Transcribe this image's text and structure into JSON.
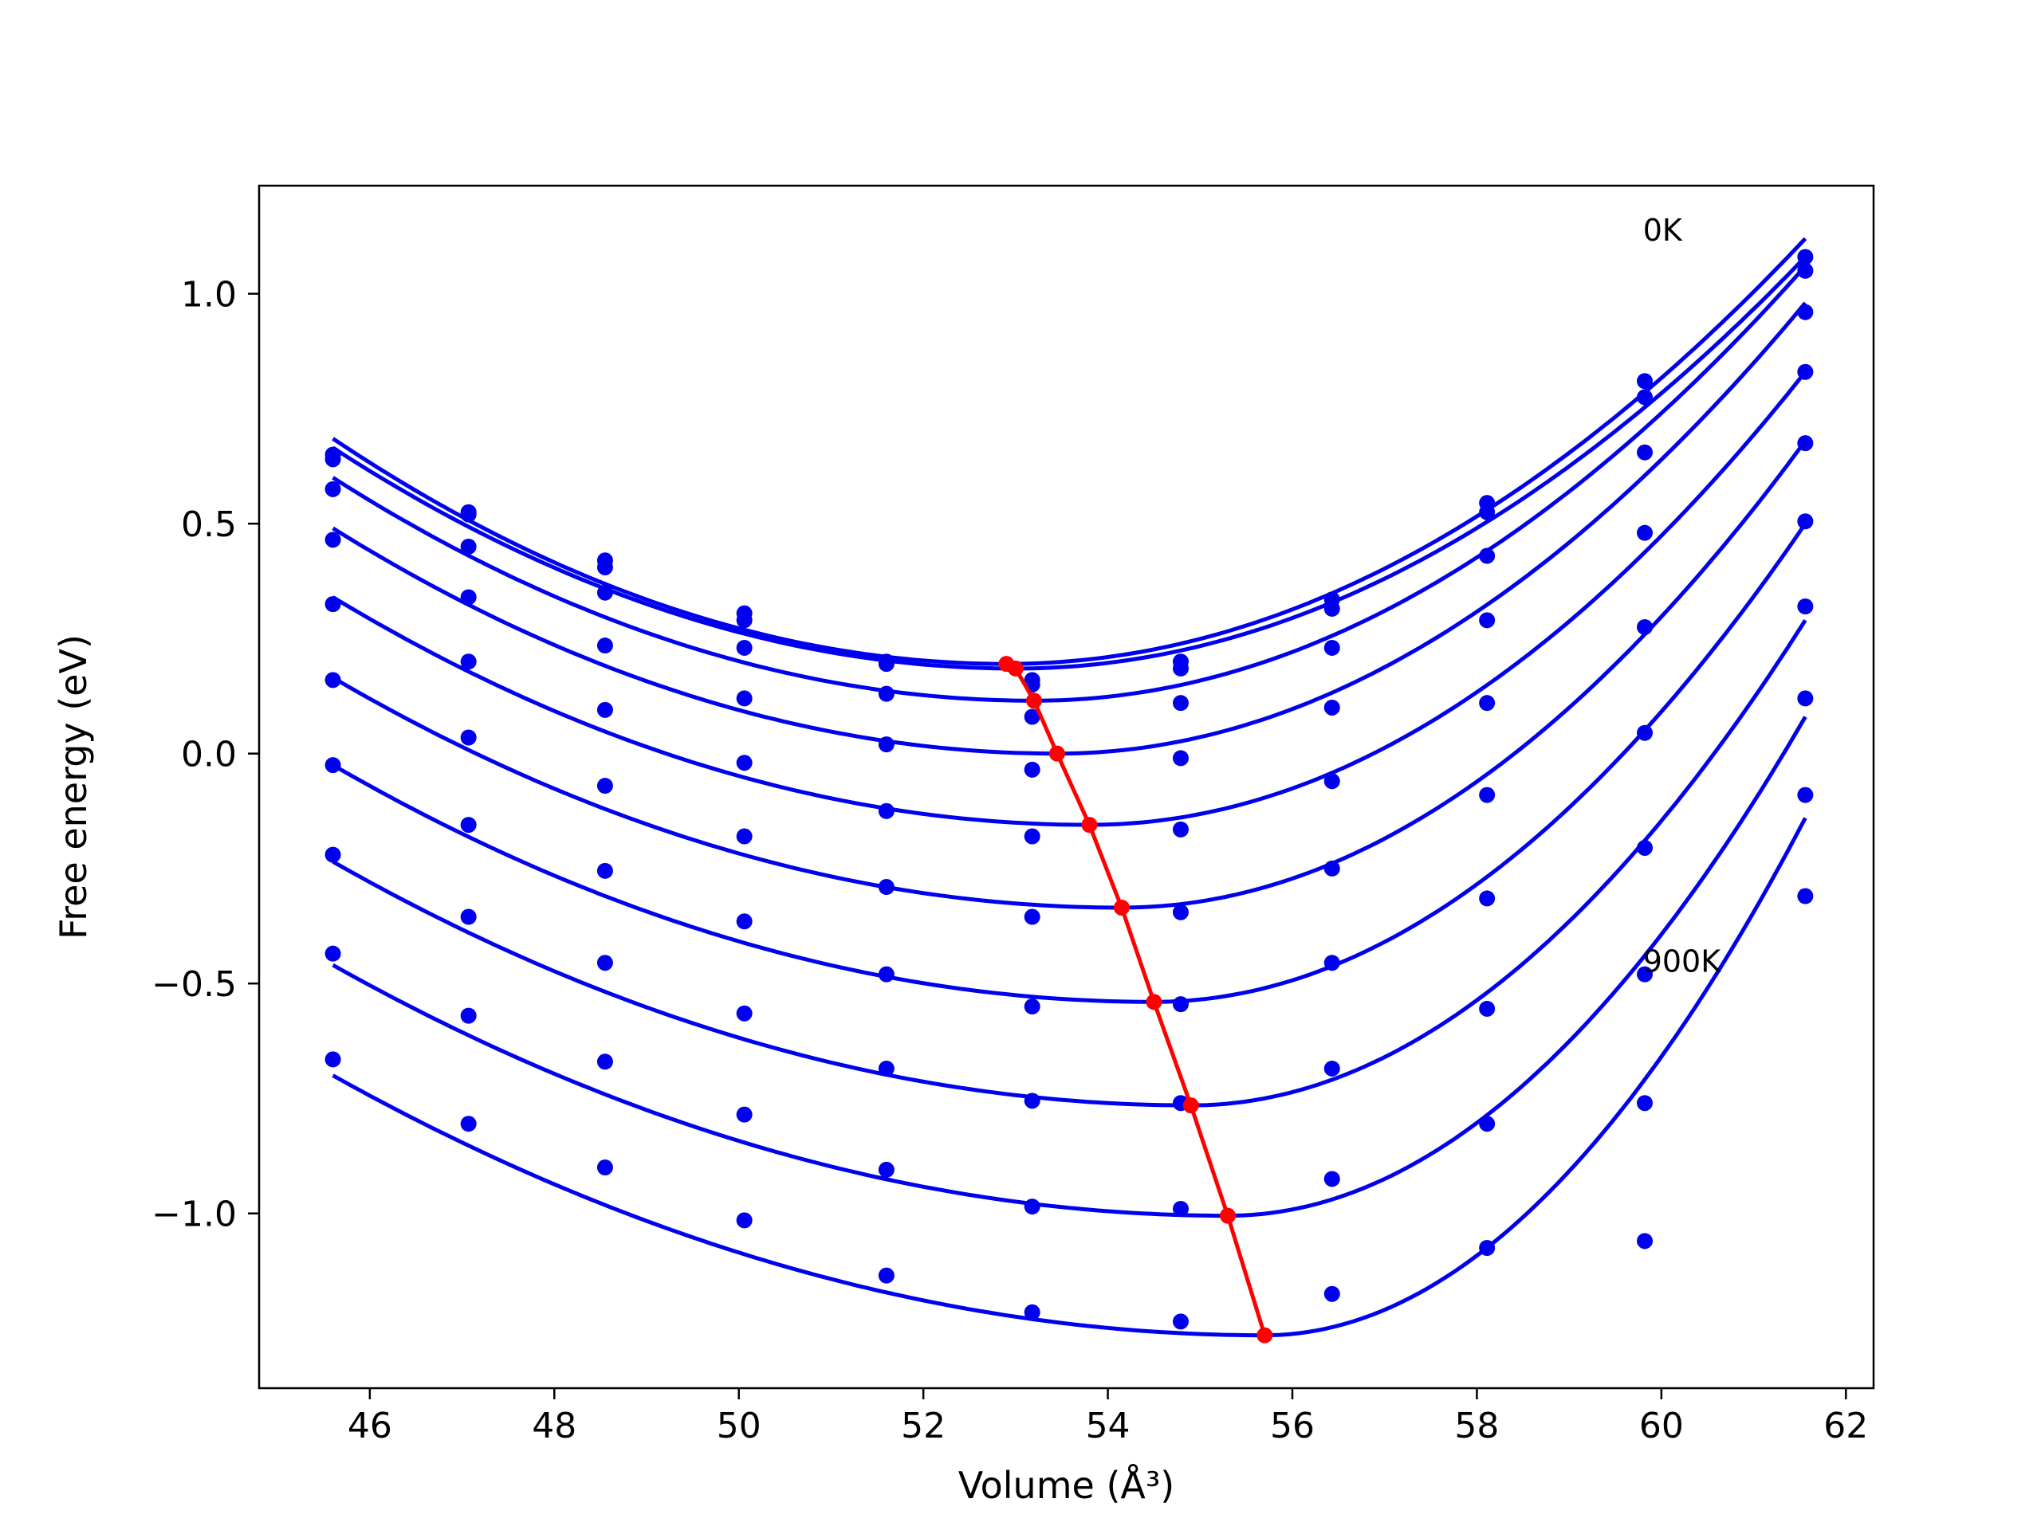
{
  "chart_data": {
    "type": "line",
    "xlabel": "Volume (Å³)",
    "ylabel": "Free energy (eV)",
    "xlim": [
      44.8,
      62.3
    ],
    "ylim": [
      -1.38,
      1.235
    ],
    "xticks": [
      46,
      48,
      50,
      52,
      54,
      56,
      58,
      60,
      62
    ],
    "xtick_labels": [
      "46",
      "48",
      "50",
      "52",
      "54",
      "56",
      "58",
      "60",
      "62"
    ],
    "yticks": [
      -1.0,
      -0.5,
      0.0,
      0.5,
      1.0
    ],
    "ytick_labels": [
      "−1.0",
      "−0.5",
      "0.0",
      "0.5",
      "1.0"
    ],
    "annotations": [
      {
        "text": "0K",
        "x": 59.8,
        "y": 1.14
      },
      {
        "text": "900K",
        "x": 59.8,
        "y": -0.45
      }
    ],
    "grid": false,
    "colors": {
      "fit": "#0000ee",
      "points": "#0000ee",
      "minimum": "#ff0000"
    },
    "x": [
      45.6,
      47.07,
      48.55,
      50.06,
      51.6,
      53.18,
      54.79,
      56.43,
      58.11,
      59.82,
      61.56
    ],
    "series": [
      {
        "kind": "points",
        "values": [
          0.65,
          0.525,
          0.42,
          0.305,
          0.2,
          0.16,
          0.2,
          0.335,
          0.545,
          0.81,
          1.08
        ]
      },
      {
        "kind": "points",
        "values": [
          0.64,
          0.52,
          0.405,
          0.29,
          0.195,
          0.15,
          0.185,
          0.315,
          0.525,
          0.775,
          1.05
        ]
      },
      {
        "kind": "points",
        "values": [
          0.575,
          0.45,
          0.35,
          0.23,
          0.13,
          0.08,
          0.11,
          0.23,
          0.43,
          0.655,
          0.96
        ]
      },
      {
        "kind": "points",
        "values": [
          0.465,
          0.34,
          0.235,
          0.12,
          0.02,
          -0.035,
          -0.01,
          0.1,
          0.29,
          0.48,
          0.83
        ]
      },
      {
        "kind": "points",
        "values": [
          0.325,
          0.2,
          0.095,
          -0.02,
          -0.125,
          -0.18,
          -0.165,
          -0.06,
          0.11,
          0.275,
          0.675
        ]
      },
      {
        "kind": "points",
        "values": [
          0.16,
          0.035,
          -0.07,
          -0.18,
          -0.29,
          -0.355,
          -0.345,
          -0.25,
          -0.09,
          0.045,
          0.505
        ]
      },
      {
        "kind": "points",
        "values": [
          -0.025,
          -0.155,
          -0.255,
          -0.365,
          -0.48,
          -0.55,
          -0.545,
          -0.455,
          -0.315,
          -0.205,
          0.32
        ]
      },
      {
        "kind": "points",
        "values": [
          -0.22,
          -0.355,
          -0.455,
          -0.565,
          -0.685,
          -0.755,
          -0.76,
          -0.685,
          -0.555,
          -0.48,
          0.12
        ]
      },
      {
        "kind": "points",
        "values": [
          -0.435,
          -0.57,
          -0.67,
          -0.785,
          -0.905,
          -0.985,
          -0.99,
          -0.925,
          -0.805,
          -0.76,
          -0.09
        ]
      },
      {
        "kind": "points",
        "values": [
          -0.665,
          -0.805,
          -0.9,
          -1.015,
          -1.135,
          -1.215,
          -1.235,
          -1.175,
          -1.075,
          -1.06,
          -0.31
        ]
      }
    ],
    "fits": [
      {
        "min_x": 52.9,
        "min_y": 0.195,
        "left_y": 0.685,
        "right_y": 1.12
      },
      {
        "min_x": 53.0,
        "min_y": 0.185,
        "left_y": 0.665,
        "right_y": 1.08
      },
      {
        "min_x": 53.2,
        "min_y": 0.115,
        "left_y": 0.6,
        "right_y": 1.06
      },
      {
        "min_x": 53.45,
        "min_y": 0.0,
        "left_y": 0.49,
        "right_y": 0.98
      },
      {
        "min_x": 53.8,
        "min_y": -0.155,
        "left_y": 0.34,
        "right_y": 0.83
      },
      {
        "min_x": 54.15,
        "min_y": -0.335,
        "left_y": 0.165,
        "right_y": 0.68
      },
      {
        "min_x": 54.5,
        "min_y": -0.54,
        "left_y": -0.025,
        "right_y": 0.5
      },
      {
        "min_x": 54.9,
        "min_y": -0.765,
        "left_y": -0.235,
        "right_y": 0.29
      },
      {
        "min_x": 55.3,
        "min_y": -1.005,
        "left_y": -0.46,
        "right_y": 0.08
      },
      {
        "min_x": 55.7,
        "min_y": -1.265,
        "left_y": -0.7,
        "right_y": -0.14
      }
    ],
    "fit_x_range": [
      45.6,
      61.56
    ],
    "minimum_curve": {
      "x": [
        52.9,
        53.0,
        53.2,
        53.45,
        53.8,
        54.15,
        54.5,
        54.9,
        55.3,
        55.7
      ],
      "y": [
        0.195,
        0.185,
        0.115,
        0.0,
        -0.155,
        -0.335,
        -0.54,
        -0.765,
        -1.005,
        -1.265
      ]
    }
  }
}
